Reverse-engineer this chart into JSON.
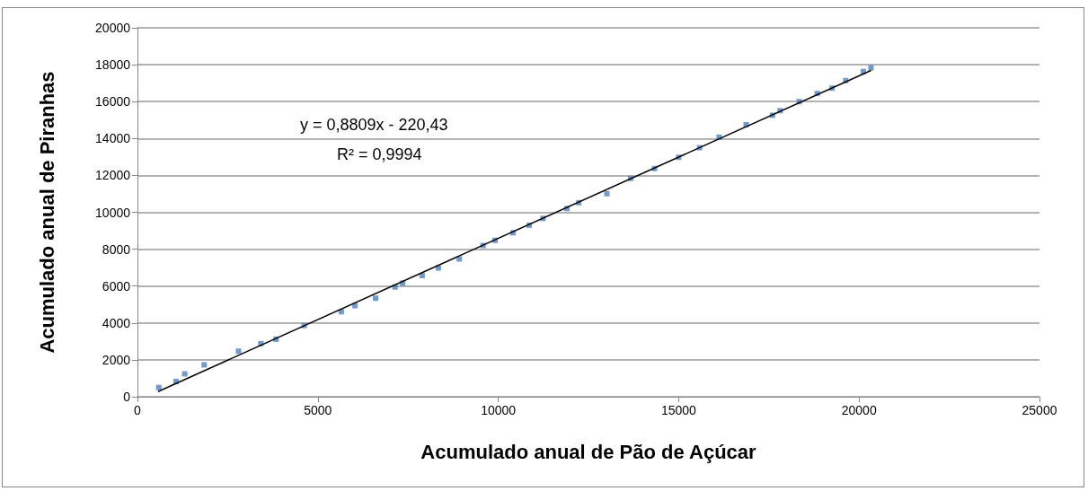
{
  "chart_data": {
    "type": "scatter",
    "xlabel": "Acumulado anual de Pão de Açúcar",
    "ylabel": "Acumulado anual de Piranhas",
    "annotations": [
      "y = 0,8809x - 220,43",
      "R² = 0,9994"
    ],
    "series": [
      {
        "color": "#4f81bd",
        "marker": "square",
        "x": [
          590,
          1070,
          1310,
          1850,
          2800,
          3420,
          3840,
          4620,
          5650,
          6030,
          6600,
          7140,
          7350,
          7890,
          8340,
          8920,
          9580,
          9910,
          10410,
          10860,
          11240,
          11900,
          12230,
          13010,
          13670,
          14330,
          15000,
          15580,
          16120,
          16870,
          17600,
          17810,
          18340,
          18840,
          19250,
          19630,
          20120,
          20330
        ],
        "values": [
          500,
          830,
          1240,
          1730,
          2470,
          2880,
          3120,
          3860,
          4610,
          4940,
          5340,
          5950,
          6160,
          6570,
          6980,
          7470,
          8200,
          8480,
          8890,
          9300,
          9670,
          10200,
          10520,
          11010,
          11840,
          12370,
          12980,
          13500,
          14070,
          14750,
          15260,
          15510,
          16000,
          16440,
          16730,
          17140,
          17630,
          17830
        ]
      },
      {
        "type": "line",
        "color": "#000000",
        "marker": "none",
        "x": [
          570,
          20330
        ],
        "values": [
          280,
          17690
        ]
      }
    ],
    "xlim": [
      0,
      25000
    ],
    "xticks": [
      0,
      5000,
      10000,
      15000,
      20000,
      25000
    ],
    "ylim": [
      0,
      20000
    ],
    "yticks": [
      0,
      2000,
      4000,
      6000,
      8000,
      10000,
      12000,
      14000,
      16000,
      18000,
      20000
    ],
    "grid": "y"
  }
}
